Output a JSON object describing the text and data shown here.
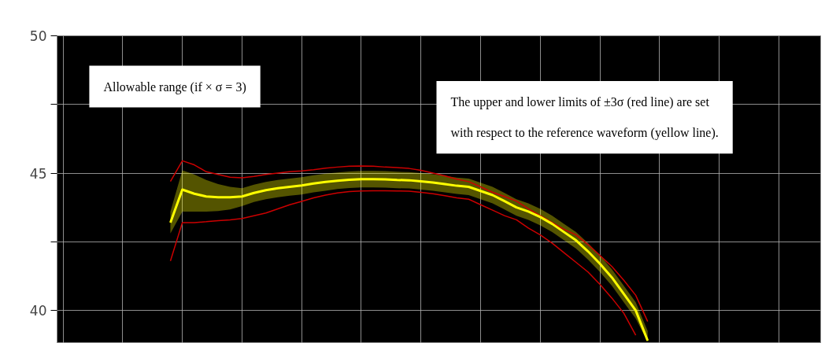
{
  "chart_data": {
    "type": "line",
    "categories": [
      null,
      null,
      null,
      null,
      null,
      null,
      null,
      null,
      null,
      null,
      null,
      null,
      null,
      null,
      null,
      null,
      null,
      null,
      null,
      null,
      null,
      null,
      null,
      null,
      null,
      null,
      null,
      null,
      null,
      null,
      null,
      null,
      null,
      null,
      null,
      null,
      null,
      null,
      null,
      null,
      null
    ],
    "series": [
      {
        "color": "#cc0000",
        "values": [
          44.7,
          45.45,
          45.3,
          45.05,
          44.95,
          44.85,
          44.83,
          44.88,
          44.95,
          45.0,
          45.05,
          45.08,
          45.12,
          45.18,
          45.22,
          45.25,
          45.26,
          45.25,
          45.22,
          45.2,
          45.17,
          45.1,
          45.0,
          44.9,
          44.78,
          44.69,
          44.5,
          44.3,
          44.15,
          43.98,
          43.7,
          43.45,
          43.2,
          42.95,
          42.75,
          42.4,
          42.0,
          41.6,
          41.1,
          40.55,
          39.6
        ]
      },
      {
        "color": "#cc0000",
        "values": [
          41.8,
          43.2,
          43.2,
          43.23,
          43.27,
          43.3,
          43.35,
          43.45,
          43.55,
          43.7,
          43.85,
          43.97,
          44.1,
          44.2,
          44.28,
          44.33,
          44.35,
          44.36,
          44.36,
          44.35,
          44.34,
          44.3,
          44.25,
          44.18,
          44.1,
          44.05,
          43.85,
          43.65,
          43.45,
          43.3,
          43.0,
          42.75,
          42.45,
          42.1,
          41.75,
          41.4,
          40.95,
          40.45,
          39.9,
          39.1,
          null
        ]
      },
      {
        "color": "#ffff00",
        "values": [
          43.2,
          44.4,
          44.25,
          44.15,
          44.12,
          44.12,
          44.15,
          44.28,
          44.38,
          44.45,
          44.5,
          44.55,
          44.62,
          44.68,
          44.72,
          44.76,
          44.78,
          44.78,
          44.77,
          44.75,
          44.74,
          44.7,
          44.66,
          44.6,
          44.54,
          44.5,
          44.35,
          44.2,
          43.98,
          43.75,
          43.6,
          43.4,
          43.15,
          42.85,
          42.55,
          42.15,
          41.7,
          41.2,
          40.6,
          40.0,
          38.9
        ],
        "upper": [
          43.6,
          45.1,
          44.95,
          44.75,
          44.6,
          44.5,
          44.45,
          44.58,
          44.68,
          44.75,
          44.8,
          44.85,
          44.92,
          44.98,
          45.02,
          45.06,
          45.08,
          45.08,
          45.07,
          45.05,
          45.04,
          45.0,
          44.96,
          44.9,
          44.84,
          44.8,
          44.65,
          44.5,
          44.28,
          44.05,
          43.9,
          43.7,
          43.45,
          43.15,
          42.85,
          42.45,
          42.0,
          41.5,
          40.9,
          40.3,
          39.25
        ],
        "lower": [
          42.8,
          43.6,
          43.6,
          43.6,
          43.62,
          43.68,
          43.8,
          43.95,
          44.05,
          44.12,
          44.18,
          44.22,
          44.3,
          44.36,
          44.42,
          44.46,
          44.48,
          44.48,
          44.47,
          44.45,
          44.44,
          44.4,
          44.36,
          44.3,
          44.24,
          44.2,
          44.05,
          43.9,
          43.68,
          43.45,
          43.3,
          43.1,
          42.85,
          42.55,
          42.25,
          41.85,
          41.4,
          40.9,
          40.3,
          39.7,
          38.85
        ]
      }
    ],
    "ylim": [
      38.8,
      50
    ],
    "yticks": [
      40,
      {
        "value": 42.5,
        "label": null
      },
      45,
      {
        "value": 47.5,
        "label": null
      },
      50
    ],
    "grid": true,
    "marker": "none",
    "line_style": "solid",
    "annotations": [
      "Allowable range (if × σ = 3)",
      "The upper and lower limits of ±3σ (red line) are set with respect to the reference waveform (yellow line)."
    ]
  }
}
